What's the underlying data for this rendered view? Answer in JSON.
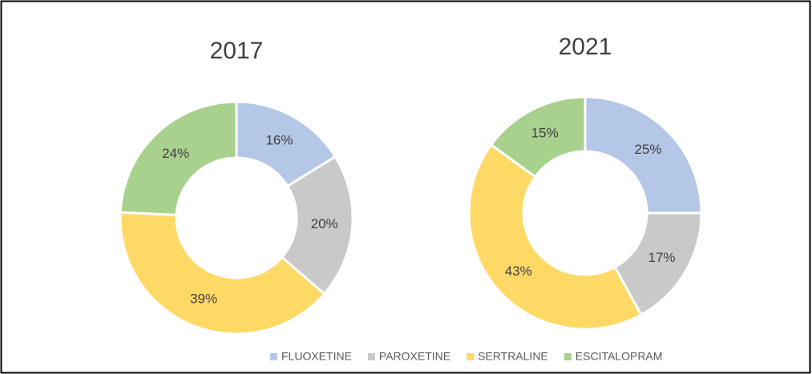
{
  "chart_data": [
    {
      "type": "pie",
      "donut": true,
      "title": "2017",
      "categories": [
        "FLUOXETINE",
        "PAROXETINE",
        "SERTRALINE",
        "ESCITALOPRAM"
      ],
      "colors": [
        "#b4c7e7",
        "#c9c9c9",
        "#ffd966",
        "#a9d18e"
      ],
      "values": [
        16,
        20,
        39,
        24
      ],
      "value_labels": [
        "16%",
        "20%",
        "39%",
        "24%"
      ]
    },
    {
      "type": "pie",
      "donut": true,
      "title": "2021",
      "categories": [
        "FLUOXETINE",
        "PAROXETINE",
        "SERTRALINE",
        "ESCITALOPRAM"
      ],
      "values": [
        25,
        17,
        43,
        15
      ],
      "value_labels": [
        "25%",
        "17%",
        "43%",
        "15%"
      ]
    }
  ]
}
